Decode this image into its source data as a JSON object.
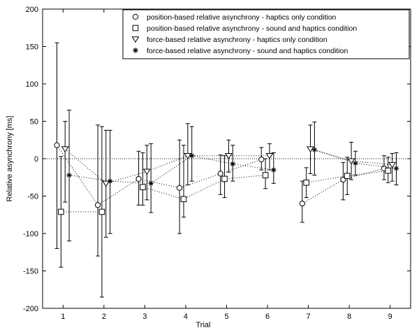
{
  "chart_data": {
    "type": "scatter",
    "xlabel": "Trial",
    "ylabel": "Relative asynchrony [ms]",
    "xlim": [
      0.5,
      9.5
    ],
    "ylim": [
      -200,
      200
    ],
    "xticks": [
      "1",
      "2",
      "3",
      "4",
      "5",
      "6",
      "7",
      "8",
      "9"
    ],
    "yticks": [
      "-200",
      "-150",
      "-100",
      "-50",
      "0",
      "50",
      "100",
      "150",
      "200"
    ],
    "reference_line_y": 0,
    "grid": false,
    "legend_position": "top-right",
    "series": [
      {
        "name": "position-based relative asynchrony - haptics only condition",
        "marker": "circle",
        "offset": -0.15,
        "values": [
          18,
          -62,
          -27,
          -39,
          -20,
          -1,
          -60,
          -28,
          -13
        ],
        "err_low": [
          -120,
          -130,
          -62,
          -100,
          -48,
          -15,
          -85,
          -55,
          -28
        ],
        "err_high": [
          155,
          45,
          10,
          25,
          5,
          15,
          -30,
          -5,
          4
        ],
        "connected_groups": [
          [
            1,
            2,
            3,
            4,
            5,
            6
          ],
          [
            7,
            8,
            9
          ]
        ]
      },
      {
        "name": "position-based relative asynchrony - sound and haptics condition",
        "marker": "square",
        "offset": -0.05,
        "values": [
          -71,
          -71,
          -38,
          -54,
          -27,
          -22,
          -32,
          -23,
          -16
        ],
        "err_low": [
          -145,
          -185,
          -62,
          -78,
          -52,
          -40,
          -52,
          -48,
          -32
        ],
        "err_high": [
          3,
          43,
          8,
          18,
          4,
          0,
          -12,
          2,
          2
        ],
        "connected_groups": [
          [
            1,
            2
          ],
          [
            3,
            4,
            5,
            6
          ],
          [
            7,
            8,
            9
          ]
        ]
      },
      {
        "name": "force-based relative asynchrony - haptics only condition",
        "marker": "triangle-down",
        "offset": 0.05,
        "values": [
          13,
          -33,
          -17,
          4,
          4,
          4,
          13,
          -3,
          -8
        ],
        "err_low": [
          -58,
          -105,
          -55,
          -35,
          -18,
          -15,
          -20,
          -28,
          -30
        ],
        "err_high": [
          50,
          38,
          18,
          47,
          25,
          20,
          45,
          22,
          7
        ],
        "connected_groups": [
          [
            1,
            2,
            3,
            4,
            5,
            6
          ],
          [
            7,
            8,
            9
          ]
        ]
      },
      {
        "name": "force-based relative asynchrony - sound and haptics condition",
        "marker": "asterisk",
        "offset": 0.15,
        "values": [
          -22,
          -30,
          -33,
          4,
          -7,
          -15,
          12,
          -6,
          -13
        ],
        "err_low": [
          -110,
          -100,
          -72,
          -30,
          -30,
          -33,
          -22,
          -22,
          -35
        ],
        "err_high": [
          65,
          38,
          20,
          43,
          18,
          8,
          49,
          10,
          8
        ],
        "connected_groups": [
          [
            1,
            2,
            3,
            4,
            5,
            6
          ],
          [
            7,
            8,
            9
          ]
        ]
      }
    ]
  }
}
